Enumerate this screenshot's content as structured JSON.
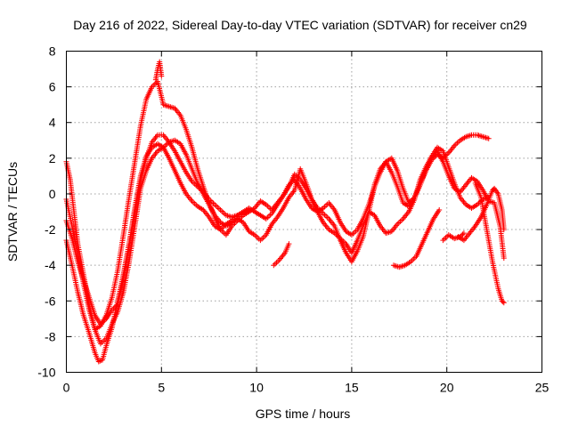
{
  "chart_data": {
    "type": "scatter",
    "title": "Day 216 of 2022, Sidereal Day-to-day VTEC variation (SDTVAR) for receiver cn29",
    "xlabel": "GPS time / hours",
    "ylabel": "SDTVAR / TECUs",
    "xlim": [
      0,
      25
    ],
    "ylim": [
      -10,
      8
    ],
    "xticks": [
      0,
      5,
      10,
      15,
      20,
      25
    ],
    "yticks": [
      -10,
      -8,
      -6,
      -4,
      -2,
      0,
      2,
      4,
      6,
      8
    ],
    "xtick_labels": [
      "0",
      "5",
      "10",
      "15",
      "20",
      "25"
    ],
    "ytick_labels": [
      "-10",
      "-8",
      "-6",
      "-4",
      "-2",
      "0",
      "2",
      "4",
      "6",
      "8"
    ],
    "grid": true,
    "marker": "+",
    "color": "#ff0000",
    "series": [
      {
        "name": "track-1",
        "points": [
          [
            0.0,
            -2.6
          ],
          [
            0.3,
            -4.0
          ],
          [
            0.6,
            -5.5
          ],
          [
            0.9,
            -6.8
          ],
          [
            1.2,
            -7.8
          ],
          [
            1.5,
            -8.9
          ],
          [
            1.7,
            -9.4
          ],
          [
            1.9,
            -9.3
          ],
          [
            2.1,
            -8.5
          ],
          [
            2.4,
            -7.5
          ],
          [
            2.7,
            -6.0
          ],
          [
            3.0,
            -4.5
          ],
          [
            3.3,
            -2.8
          ],
          [
            3.6,
            -1.0
          ],
          [
            3.9,
            0.7
          ],
          [
            4.2,
            2.0
          ],
          [
            4.5,
            2.9
          ],
          [
            4.8,
            3.3
          ],
          [
            5.1,
            3.3
          ],
          [
            5.4,
            2.9
          ],
          [
            5.7,
            2.4
          ],
          [
            6.0,
            1.8
          ],
          [
            6.3,
            1.2
          ],
          [
            6.6,
            0.7
          ],
          [
            6.9,
            0.4
          ],
          [
            7.2,
            0.1
          ],
          [
            7.5,
            -0.3
          ],
          [
            7.8,
            -0.6
          ],
          [
            8.1,
            -0.9
          ],
          [
            8.4,
            -1.2
          ],
          [
            8.7,
            -1.3
          ],
          [
            9.0,
            -1.2
          ],
          [
            9.3,
            -1.0
          ],
          [
            9.6,
            -0.8
          ],
          [
            9.9,
            -1.0
          ],
          [
            10.2,
            -1.2
          ],
          [
            10.5,
            -1.4
          ],
          [
            10.8,
            -1.1
          ],
          [
            11.1,
            -0.6
          ],
          [
            11.4,
            -0.1
          ],
          [
            11.7,
            0.5
          ],
          [
            12.0,
            0.8
          ],
          [
            12.3,
            0.3
          ],
          [
            12.6,
            -0.3
          ],
          [
            12.9,
            -0.8
          ],
          [
            13.2,
            -1.0
          ],
          [
            13.5,
            -0.8
          ],
          [
            13.8,
            -0.5
          ],
          [
            14.1,
            -0.9
          ],
          [
            14.4,
            -1.6
          ],
          [
            14.7,
            -2.1
          ],
          [
            15.0,
            -2.3
          ],
          [
            15.3,
            -2.0
          ],
          [
            15.6,
            -1.4
          ],
          [
            15.9,
            -0.6
          ],
          [
            16.2,
            0.4
          ],
          [
            16.5,
            1.2
          ],
          [
            16.8,
            1.8
          ],
          [
            17.1,
            2.0
          ],
          [
            17.4,
            1.3
          ],
          [
            17.7,
            0.3
          ],
          [
            18.0,
            -0.5
          ],
          [
            18.3,
            -0.2
          ],
          [
            18.6,
            0.5
          ],
          [
            18.9,
            1.3
          ],
          [
            19.2,
            2.0
          ],
          [
            19.5,
            2.4
          ],
          [
            19.8,
            1.8
          ],
          [
            20.1,
            1.0
          ],
          [
            20.4,
            0.3
          ],
          [
            20.7,
            0.1
          ],
          [
            21.0,
            0.5
          ],
          [
            21.3,
            0.9
          ],
          [
            21.6,
            0.7
          ],
          [
            21.9,
            0.2
          ],
          [
            22.2,
            -0.4
          ],
          [
            22.5,
            -0.5
          ],
          [
            22.8,
            -1.8
          ],
          [
            23.0,
            -3.6
          ]
        ]
      },
      {
        "name": "track-2",
        "points": [
          [
            0.0,
            1.8
          ],
          [
            0.2,
            0.8
          ],
          [
            0.4,
            -1.0
          ],
          [
            0.6,
            -2.8
          ],
          [
            0.9,
            -4.5
          ],
          [
            1.2,
            -6.2
          ],
          [
            1.5,
            -7.6
          ],
          [
            1.8,
            -8.4
          ],
          [
            2.1,
            -8.1
          ],
          [
            2.4,
            -7.3
          ],
          [
            2.7,
            -6.6
          ],
          [
            3.0,
            -5.5
          ],
          [
            3.3,
            -3.8
          ],
          [
            3.6,
            -1.8
          ],
          [
            3.9,
            0.3
          ],
          [
            4.2,
            1.3
          ],
          [
            4.5,
            2.0
          ],
          [
            4.8,
            2.4
          ],
          [
            5.1,
            2.6
          ],
          [
            5.4,
            2.9
          ],
          [
            5.7,
            3.0
          ],
          [
            6.0,
            2.8
          ],
          [
            6.3,
            2.2
          ],
          [
            6.6,
            1.4
          ],
          [
            6.9,
            0.6
          ],
          [
            7.2,
            0.0
          ],
          [
            7.5,
            -0.6
          ],
          [
            7.8,
            -1.2
          ],
          [
            8.1,
            -1.6
          ],
          [
            8.4,
            -1.8
          ],
          [
            8.7,
            -1.6
          ],
          [
            9.0,
            -1.4
          ],
          [
            9.3,
            -1.6
          ],
          [
            9.6,
            -2.1
          ],
          [
            9.9,
            -2.3
          ],
          [
            10.2,
            -2.6
          ],
          [
            10.5,
            -2.3
          ],
          [
            10.8,
            -1.7
          ],
          [
            11.1,
            -1.3
          ],
          [
            11.4,
            -0.8
          ],
          [
            11.7,
            -0.2
          ],
          [
            12.0,
            0.2
          ],
          [
            12.3,
            1.4
          ],
          [
            12.6,
            0.6
          ],
          [
            12.9,
            -0.3
          ],
          [
            13.2,
            -1.0
          ],
          [
            13.5,
            -1.6
          ],
          [
            13.8,
            -2.0
          ],
          [
            14.1,
            -2.2
          ],
          [
            14.4,
            -2.5
          ],
          [
            14.7,
            -2.8
          ],
          [
            15.0,
            -3.3
          ],
          [
            15.3,
            -2.6
          ],
          [
            15.6,
            -1.8
          ],
          [
            15.9,
            -1.0
          ],
          [
            16.2,
            -1.2
          ],
          [
            16.5,
            -1.8
          ],
          [
            16.8,
            -2.2
          ],
          [
            17.1,
            -2.1
          ],
          [
            17.4,
            -1.7
          ],
          [
            17.7,
            -1.4
          ],
          [
            18.0,
            -1.0
          ],
          [
            18.3,
            -0.3
          ],
          [
            18.6,
            0.8
          ],
          [
            18.9,
            1.5
          ],
          [
            19.2,
            2.1
          ],
          [
            19.5,
            2.6
          ],
          [
            19.8,
            2.4
          ],
          [
            20.1,
            1.5
          ],
          [
            20.4,
            0.6
          ],
          [
            20.7,
            -0.2
          ],
          [
            21.0,
            -0.6
          ],
          [
            21.3,
            -0.8
          ],
          [
            21.6,
            -0.6
          ],
          [
            21.9,
            -0.3
          ],
          [
            22.2,
            -0.2
          ]
        ]
      },
      {
        "name": "track-3",
        "points": [
          [
            0.0,
            -0.3
          ],
          [
            0.3,
            -1.8
          ],
          [
            0.6,
            -3.4
          ],
          [
            0.9,
            -5.0
          ],
          [
            1.2,
            -6.5
          ],
          [
            1.5,
            -7.6
          ],
          [
            1.8,
            -7.4
          ],
          [
            2.1,
            -6.8
          ],
          [
            2.4,
            -5.8
          ],
          [
            2.7,
            -4.3
          ],
          [
            3.0,
            -2.3
          ],
          [
            3.3,
            -0.2
          ],
          [
            3.6,
            1.8
          ],
          [
            3.9,
            3.8
          ],
          [
            4.2,
            5.3
          ],
          [
            4.5,
            6.0
          ],
          [
            4.8,
            6.3
          ],
          [
            5.1,
            5.0
          ],
          [
            5.4,
            4.9
          ],
          [
            5.7,
            4.8
          ],
          [
            6.0,
            4.4
          ],
          [
            6.3,
            3.6
          ],
          [
            6.6,
            2.6
          ],
          [
            6.9,
            1.4
          ],
          [
            7.2,
            0.4
          ],
          [
            7.5,
            -0.5
          ],
          [
            7.8,
            -1.3
          ],
          [
            8.1,
            -2.0
          ],
          [
            8.4,
            -2.3
          ],
          [
            8.7,
            -1.8
          ],
          [
            9.0,
            -1.5
          ],
          [
            9.3,
            -1.2
          ],
          [
            9.6,
            -1.0
          ],
          [
            9.9,
            -0.8
          ],
          [
            10.2,
            -0.4
          ],
          [
            10.5,
            -0.6
          ],
          [
            10.8,
            -0.9
          ],
          [
            11.1,
            -0.5
          ],
          [
            11.4,
            -0.1
          ],
          [
            11.7,
            0.4
          ],
          [
            12.0,
            1.1
          ],
          [
            12.3,
            0.8
          ],
          [
            12.6,
            0.3
          ],
          [
            12.9,
            -0.3
          ],
          [
            13.2,
            -0.8
          ],
          [
            13.5,
            -1.1
          ],
          [
            13.8,
            -1.4
          ],
          [
            14.1,
            -1.8
          ],
          [
            14.4,
            -2.6
          ],
          [
            14.7,
            -3.3
          ],
          [
            15.0,
            -3.8
          ],
          [
            15.3,
            -3.2
          ],
          [
            15.6,
            -2.4
          ],
          [
            15.9,
            -1.0
          ],
          [
            16.2,
            0.5
          ],
          [
            16.5,
            1.4
          ],
          [
            16.8,
            1.8
          ],
          [
            17.1,
            1.2
          ],
          [
            17.4,
            0.4
          ],
          [
            17.7,
            -0.5
          ],
          [
            18.0,
            -0.7
          ],
          [
            18.3,
            -0.2
          ],
          [
            18.6,
            0.6
          ],
          [
            18.9,
            1.3
          ],
          [
            19.2,
            1.9
          ],
          [
            19.5,
            2.2
          ],
          [
            19.8,
            2.0
          ],
          [
            20.1,
            2.3
          ],
          [
            20.4,
            2.7
          ],
          [
            20.7,
            3.0
          ],
          [
            21.0,
            3.2
          ],
          [
            21.3,
            3.3
          ],
          [
            21.6,
            3.3
          ],
          [
            21.9,
            3.2
          ],
          [
            22.2,
            3.1
          ]
        ]
      },
      {
        "name": "track-4",
        "points": [
          [
            0.0,
            -1.5
          ],
          [
            0.3,
            -2.5
          ],
          [
            0.6,
            -3.8
          ],
          [
            0.9,
            -4.8
          ],
          [
            1.2,
            -5.8
          ],
          [
            1.5,
            -6.8
          ],
          [
            1.8,
            -7.3
          ],
          [
            2.1,
            -7.0
          ],
          [
            2.4,
            -6.5
          ],
          [
            2.7,
            -6.2
          ],
          [
            3.0,
            -4.7
          ],
          [
            3.3,
            -2.8
          ],
          [
            3.6,
            -0.8
          ],
          [
            3.9,
            1.0
          ],
          [
            4.2,
            2.1
          ],
          [
            4.5,
            2.6
          ],
          [
            4.8,
            2.8
          ],
          [
            5.1,
            2.6
          ],
          [
            5.4,
            2.0
          ],
          [
            5.7,
            1.3
          ],
          [
            6.0,
            0.6
          ],
          [
            6.3,
            0.0
          ],
          [
            6.6,
            -0.4
          ],
          [
            6.9,
            -0.7
          ],
          [
            7.2,
            -0.9
          ],
          [
            7.5,
            -1.3
          ],
          [
            7.8,
            -1.8
          ],
          [
            8.1,
            -2.0
          ],
          [
            8.4,
            -1.7
          ],
          [
            8.7,
            -1.5
          ],
          [
            9.0,
            -1.2
          ]
        ]
      },
      {
        "name": "track-5",
        "points": [
          [
            20.6,
            -2.4
          ],
          [
            20.9,
            -2.6
          ],
          [
            21.2,
            -2.2
          ],
          [
            21.5,
            -1.8
          ],
          [
            21.8,
            -1.3
          ],
          [
            22.1,
            -0.6
          ],
          [
            22.4,
            0.2
          ],
          [
            22.5,
            0.3
          ],
          [
            22.7,
            0.0
          ],
          [
            22.9,
            -0.9
          ],
          [
            23.0,
            -2.0
          ]
        ]
      },
      {
        "name": "track-6",
        "points": [
          [
            21.5,
            0.6
          ],
          [
            21.8,
            -0.2
          ],
          [
            22.1,
            -2.0
          ],
          [
            22.4,
            -3.8
          ],
          [
            22.7,
            -5.3
          ],
          [
            22.9,
            -6.0
          ],
          [
            23.0,
            -6.1
          ]
        ]
      },
      {
        "name": "track-7",
        "points": [
          [
            4.7,
            6.4
          ],
          [
            4.8,
            7.0
          ],
          [
            4.9,
            7.4
          ],
          [
            5.0,
            6.6
          ]
        ]
      },
      {
        "name": "track-8",
        "points": [
          [
            10.9,
            -4.0
          ],
          [
            11.2,
            -3.7
          ],
          [
            11.5,
            -3.3
          ],
          [
            11.7,
            -2.8
          ]
        ]
      },
      {
        "name": "track-9",
        "points": [
          [
            17.2,
            -4.0
          ],
          [
            17.5,
            -4.1
          ],
          [
            17.8,
            -4.0
          ],
          [
            18.1,
            -3.8
          ],
          [
            18.4,
            -3.5
          ],
          [
            18.7,
            -2.8
          ],
          [
            19.0,
            -2.1
          ],
          [
            19.3,
            -1.4
          ],
          [
            19.6,
            -0.9
          ]
        ]
      },
      {
        "name": "track-10",
        "points": [
          [
            19.8,
            -2.6
          ],
          [
            20.1,
            -2.3
          ],
          [
            20.4,
            -2.5
          ],
          [
            20.7,
            -2.4
          ],
          [
            20.9,
            -2.2
          ]
        ]
      }
    ]
  }
}
